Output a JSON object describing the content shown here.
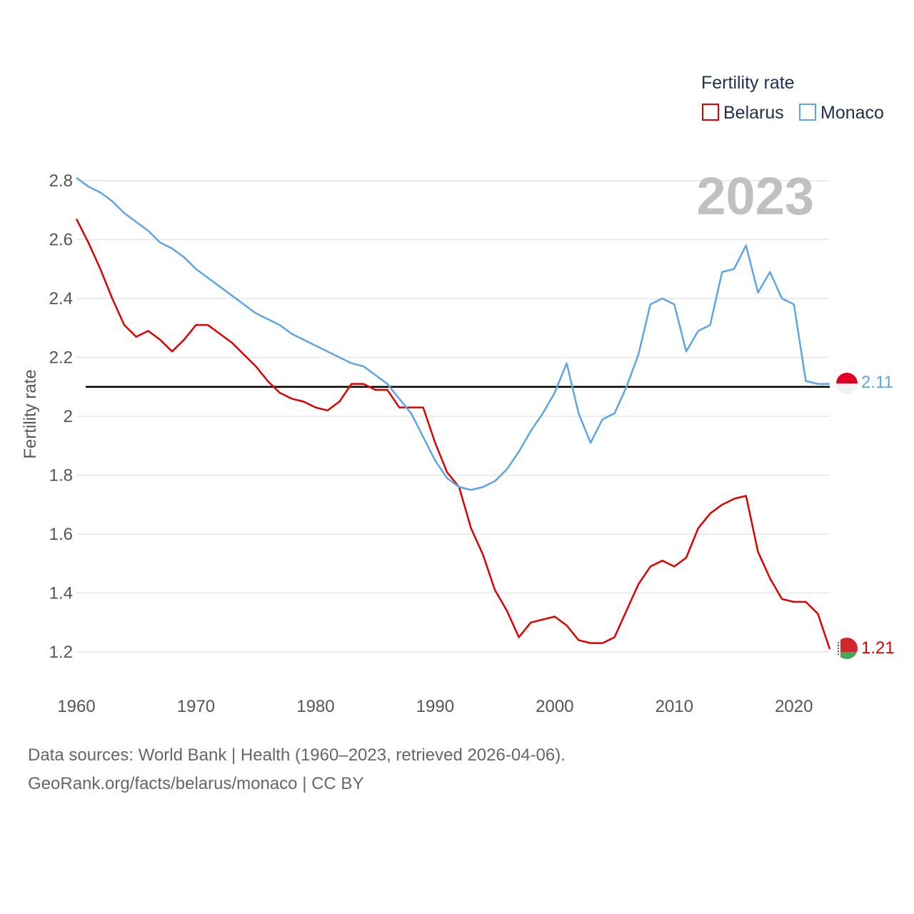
{
  "chart_data": {
    "type": "line",
    "title": "",
    "xlabel": "",
    "ylabel": "Fertility rate",
    "xlim": [
      1960,
      2023
    ],
    "ylim": [
      1.1,
      2.85
    ],
    "x_ticks": [
      1960,
      1970,
      1980,
      1990,
      2000,
      2010,
      2020
    ],
    "x_tick_labels": [
      "1960",
      "1970",
      "1980",
      "1990",
      "2000",
      "2010",
      "2020"
    ],
    "y_ticks": [
      1.2,
      1.4,
      1.6,
      1.8,
      2.0,
      2.2,
      2.4,
      2.6,
      2.8
    ],
    "y_tick_labels": [
      "1.2",
      "1.4",
      "1.6",
      "1.8",
      "2",
      "2.2",
      "2.4",
      "2.6",
      "2.8"
    ],
    "grid": true,
    "legend": {
      "title": "Fertility rate",
      "position": "top-right"
    },
    "year_label": "2023",
    "reference_line": {
      "value": 2.1,
      "color": "#000000"
    },
    "x": [
      1960,
      1961,
      1962,
      1963,
      1964,
      1965,
      1966,
      1967,
      1968,
      1969,
      1970,
      1971,
      1972,
      1973,
      1974,
      1975,
      1976,
      1977,
      1978,
      1979,
      1980,
      1981,
      1982,
      1983,
      1984,
      1985,
      1986,
      1987,
      1988,
      1989,
      1990,
      1991,
      1992,
      1993,
      1994,
      1995,
      1996,
      1997,
      1998,
      1999,
      2000,
      2001,
      2002,
      2003,
      2004,
      2005,
      2006,
      2007,
      2008,
      2009,
      2010,
      2011,
      2012,
      2013,
      2014,
      2015,
      2016,
      2017,
      2018,
      2019,
      2020,
      2021,
      2022,
      2023
    ],
    "series": [
      {
        "name": "Belarus",
        "color": "#e00000",
        "end_label": "1.21",
        "flag": "belarus-flag-icon",
        "values": [
          2.67,
          2.59,
          2.5,
          2.4,
          2.31,
          2.27,
          2.29,
          2.26,
          2.22,
          2.26,
          2.31,
          2.31,
          2.28,
          2.25,
          2.21,
          2.17,
          2.12,
          2.08,
          2.06,
          2.05,
          2.03,
          2.02,
          2.05,
          2.11,
          2.11,
          2.09,
          2.09,
          2.03,
          2.03,
          2.03,
          1.91,
          1.81,
          1.76,
          1.62,
          1.53,
          1.41,
          1.34,
          1.25,
          1.3,
          1.31,
          1.32,
          1.29,
          1.24,
          1.23,
          1.23,
          1.25,
          1.34,
          1.43,
          1.49,
          1.51,
          1.49,
          1.52,
          1.62,
          1.67,
          1.7,
          1.72,
          1.73,
          1.54,
          1.45,
          1.38,
          1.37,
          1.37,
          1.33,
          1.21
        ]
      },
      {
        "name": "Monaco",
        "color": "#5da5e6",
        "end_label": "2.11",
        "flag": "monaco-flag-icon",
        "values": [
          2.81,
          2.78,
          2.76,
          2.73,
          2.69,
          2.66,
          2.63,
          2.59,
          2.57,
          2.54,
          2.5,
          2.47,
          2.44,
          2.41,
          2.38,
          2.35,
          2.33,
          2.31,
          2.28,
          2.26,
          2.24,
          2.22,
          2.2,
          2.18,
          2.17,
          2.14,
          2.11,
          2.06,
          2.01,
          1.93,
          1.85,
          1.79,
          1.76,
          1.75,
          1.76,
          1.78,
          1.82,
          1.88,
          1.95,
          2.01,
          2.08,
          2.18,
          2.01,
          1.91,
          1.99,
          2.01,
          2.1,
          2.21,
          2.38,
          2.4,
          2.38,
          2.22,
          2.29,
          2.31,
          2.49,
          2.5,
          2.58,
          2.42,
          2.49,
          2.4,
          2.38,
          2.12,
          2.11,
          2.11
        ]
      }
    ]
  },
  "footer": {
    "line1": "Data sources: World Bank | Health (1960–2023, retrieved 2026-04-06).",
    "line2": "GeoRank.org/facts/belarus/monaco | CC BY"
  },
  "colors": {
    "grid": "#e6e6e6",
    "belarus_flag_red": "#d22730",
    "belarus_flag_green": "#4aa657",
    "monaco_flag_red": "#e00025"
  }
}
